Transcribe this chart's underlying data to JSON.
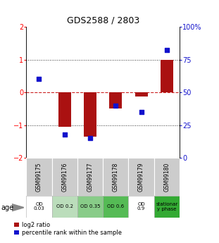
{
  "title": "GDS2588 / 2803",
  "samples": [
    "GSM99175",
    "GSM99176",
    "GSM99177",
    "GSM99178",
    "GSM99179",
    "GSM99180"
  ],
  "log2_ratio": [
    0.0,
    -1.05,
    -1.35,
    -0.5,
    -0.12,
    1.0
  ],
  "percentile_rank": [
    60,
    18,
    15,
    40,
    35,
    82
  ],
  "ylim_left": [
    -2,
    2
  ],
  "ylim_right": [
    0,
    100
  ],
  "bar_color": "#aa1111",
  "dot_color": "#1111cc",
  "zero_line_color": "#cc2222",
  "dotted_line_color": "#333333",
  "age_labels": [
    "OD\n0.03",
    "OD 0.2",
    "OD 0.35",
    "OD 0.6",
    "OD\n0.9",
    "stationar\ny phase"
  ],
  "age_bg_colors": [
    "#ffffff",
    "#bbddbb",
    "#88cc88",
    "#55bb55",
    "#ffffff",
    "#33aa33"
  ],
  "sample_bg_color": "#cccccc",
  "legend_red_label": "log2 ratio",
  "legend_blue_label": "percentile rank within the sample",
  "bar_width": 0.5,
  "yticks_left": [
    -2,
    -1,
    0,
    1,
    2
  ],
  "yticks_right": [
    0,
    25,
    50,
    75,
    100
  ],
  "left_tick_colors": [
    "black",
    "black",
    "black",
    "black",
    "black"
  ],
  "right_axis_color": "#1111cc"
}
